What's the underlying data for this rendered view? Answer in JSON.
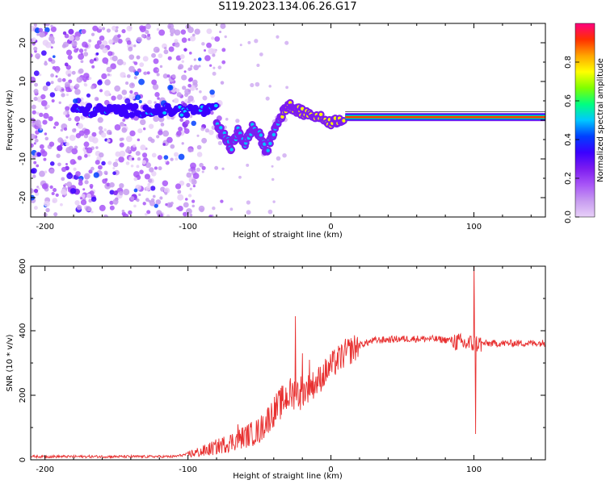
{
  "title": "S119.2023.134.06.26.G17",
  "chart_data": [
    {
      "type": "heatmap",
      "name": "spectrogram",
      "xlabel": "Height of straight line (km)",
      "ylabel": "Frequency (Hz)",
      "xlim": [
        -210,
        150
      ],
      "ylim": [
        -25,
        25
      ],
      "xticks": [
        -200,
        -100,
        0,
        100
      ],
      "yticks": [
        -20,
        -10,
        0,
        10,
        20
      ],
      "colorbar": {
        "label": "Normalized spectral amplitude",
        "range": [
          0,
          1
        ],
        "ticks": [
          "0.0",
          "0.2",
          "0.4",
          "0.6",
          "0.8"
        ],
        "colors": [
          "#e8d0f8",
          "#c79cf0",
          "#a855f7",
          "#7c1cf0",
          "#3b00ff",
          "#0040ff",
          "#00c8ff",
          "#00ff80",
          "#80ff00",
          "#ffff00",
          "#ffa500",
          "#ff3000",
          "#ff007f"
        ]
      },
      "features": {
        "noise_region_x": [
          -210,
          -95
        ],
        "noise_amplitude_max": 0.2,
        "main_line_x": [
          -180,
          -80
        ],
        "main_line_frequency_hz": 2.5,
        "main_line_amplitude": 0.25,
        "scintillation_track": [
          {
            "x": -80,
            "y": -1
          },
          {
            "x": -75,
            "y": -4
          },
          {
            "x": -70,
            "y": -7
          },
          {
            "x": -65,
            "y": -3
          },
          {
            "x": -60,
            "y": -6
          },
          {
            "x": -55,
            "y": -2
          },
          {
            "x": -50,
            "y": -4
          },
          {
            "x": -45,
            "y": -8
          },
          {
            "x": -40,
            "y": -3
          },
          {
            "x": -35,
            "y": 1
          },
          {
            "x": -30,
            "y": 4
          },
          {
            "x": -25,
            "y": 3
          },
          {
            "x": -20,
            "y": 2
          },
          {
            "x": -10,
            "y": 1
          },
          {
            "x": 0,
            "y": -0.5
          },
          {
            "x": 10,
            "y": 0.5
          }
        ],
        "stable_line_x": [
          10,
          150
        ],
        "stable_line_frequency_hz": 0.8,
        "stable_line_amplitude": 0.9
      }
    },
    {
      "type": "line",
      "name": "snr",
      "xlabel": "Height of straight line (km)",
      "ylabel": "SNR (10 * v/v)",
      "xlim": [
        -210,
        150
      ],
      "ylim": [
        0,
        600
      ],
      "xticks": [
        -200,
        -100,
        0,
        100
      ],
      "yticks": [
        0,
        200,
        400,
        600
      ],
      "color": "#e83030",
      "envelope": [
        {
          "x": -210,
          "y": 10
        },
        {
          "x": -110,
          "y": 10
        },
        {
          "x": -90,
          "y": 25
        },
        {
          "x": -70,
          "y": 55
        },
        {
          "x": -50,
          "y": 90
        },
        {
          "x": -40,
          "y": 150
        },
        {
          "x": -30,
          "y": 200
        },
        {
          "x": -20,
          "y": 210
        },
        {
          "x": -10,
          "y": 240
        },
        {
          "x": 0,
          "y": 290
        },
        {
          "x": 10,
          "y": 330
        },
        {
          "x": 20,
          "y": 355
        },
        {
          "x": 30,
          "y": 370
        },
        {
          "x": 50,
          "y": 375
        },
        {
          "x": 70,
          "y": 375
        },
        {
          "x": 85,
          "y": 370
        },
        {
          "x": 92,
          "y": 360
        },
        {
          "x": 100,
          "y": 360
        },
        {
          "x": 150,
          "y": 362
        }
      ],
      "spikes": [
        {
          "x": -65,
          "y": 110
        },
        {
          "x": -25,
          "y": 445
        },
        {
          "x": -20,
          "y": 330
        },
        {
          "x": -15,
          "y": 310
        },
        {
          "x": 100,
          "y": 610
        },
        {
          "x": 101,
          "y": 80
        }
      ]
    }
  ]
}
